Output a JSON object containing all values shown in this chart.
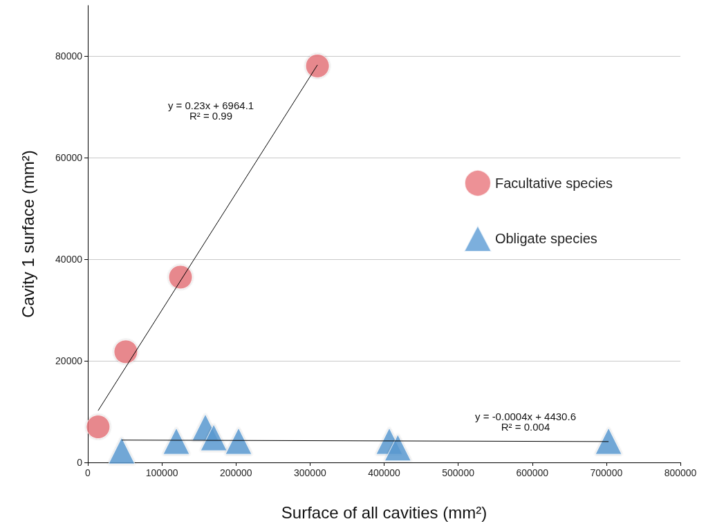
{
  "chart_data": {
    "type": "scatter",
    "xlabel": "Surface of all cavities (mm²)",
    "ylabel": "Cavity 1 surface (mm²)",
    "xlim": [
      0,
      800000
    ],
    "xticks": [
      0,
      100000,
      200000,
      300000,
      400000,
      500000,
      600000,
      700000,
      800000
    ],
    "ylim": [
      0,
      90000
    ],
    "yticks": [
      0,
      20000,
      40000,
      60000,
      80000
    ],
    "grid": "y",
    "legend": "right",
    "series": [
      {
        "name": "Facultative species",
        "color": "#e8767c",
        "marker": "circle",
        "x": [
          13900,
          51300,
          125100,
          310000
        ],
        "values": [
          7000,
          21800,
          36500,
          78100
        ]
      },
      {
        "name": "Obligate species",
        "color": "#5b9bd5",
        "marker": "triangle",
        "x": [
          45700,
          119500,
          158700,
          170000,
          203500,
          407000,
          418500,
          703000
        ],
        "values": [
          2300,
          4200,
          6900,
          4900,
          4200,
          4200,
          2900,
          4200
        ]
      },
      {
        "type": "line",
        "color": "#000000",
        "x": [
          13900,
          310000
        ],
        "values": [
          10200,
          78300
        ]
      },
      {
        "type": "line",
        "color": "#000000",
        "x": [
          45700,
          703000
        ],
        "values": [
          4400,
          4100
        ]
      }
    ],
    "annotations": [
      "y = 0.23x + 6964.1\nR² = 0.99",
      "y = -0.0004x + 4430.6\nR² = 0.004"
    ]
  }
}
